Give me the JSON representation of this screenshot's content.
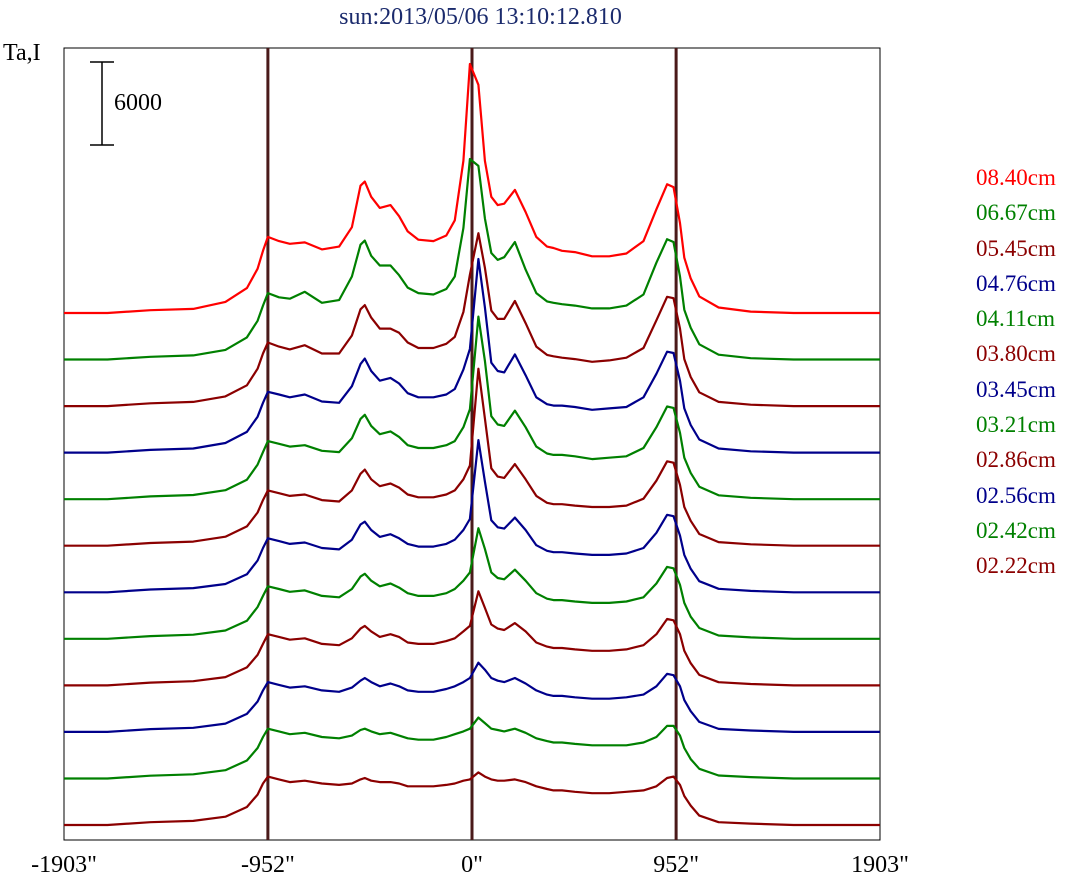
{
  "chart_data": {
    "type": "line",
    "title": "sun:2013/05/06 13:10:12.810",
    "ylabel": "Ta,I",
    "scale_bar_label": "6000",
    "scale_bar_value": 6000,
    "xlim": [
      -1903,
      1903
    ],
    "x_ticks": [
      "-1903\"",
      "-952\"",
      "0\"",
      "952\"",
      "1903\""
    ],
    "reference_lines_x": [
      -952,
      0,
      952
    ],
    "x": [
      -1903,
      -1700,
      -1500,
      -1300,
      -1150,
      -1050,
      -1000,
      -975,
      -952,
      -900,
      -850,
      -780,
      -700,
      -620,
      -560,
      -520,
      -500,
      -470,
      -430,
      -380,
      -340,
      -300,
      -250,
      -180,
      -120,
      -80,
      -40,
      -10,
      30,
      60,
      90,
      120,
      150,
      200,
      250,
      300,
      350,
      380,
      420,
      480,
      560,
      640,
      720,
      800,
      860,
      910,
      940,
      970,
      990,
      1020,
      1060,
      1150,
      1300,
      1500,
      1700,
      1903
    ],
    "series": [
      {
        "name": "08.40cm",
        "color": "#ff0000",
        "values": [
          0,
          0,
          200,
          300,
          800,
          1800,
          3200,
          4500,
          5500,
          5200,
          5000,
          5100,
          4600,
          4800,
          6200,
          9200,
          9500,
          8400,
          7600,
          7800,
          7000,
          5900,
          5300,
          5200,
          5600,
          6700,
          11000,
          18000,
          16500,
          11000,
          8400,
          7800,
          7900,
          8900,
          7300,
          5500,
          4800,
          4700,
          4500,
          4400,
          4100,
          4100,
          4300,
          5200,
          7500,
          9300,
          9100,
          6500,
          4000,
          2500,
          1200,
          400,
          100,
          0,
          0,
          0
        ]
      },
      {
        "name": "06.67cm",
        "color": "#008000",
        "values": [
          0,
          0,
          200,
          300,
          700,
          1600,
          2800,
          3900,
          4800,
          4500,
          4400,
          4900,
          4100,
          4300,
          6000,
          8300,
          8600,
          7500,
          6800,
          6800,
          6100,
          5200,
          4800,
          4700,
          5100,
          6000,
          9500,
          14500,
          14000,
          10200,
          7700,
          7200,
          7400,
          8500,
          6500,
          4800,
          4200,
          4100,
          4000,
          3900,
          3700,
          3700,
          3900,
          4700,
          7000,
          8700,
          8500,
          6000,
          3600,
          2300,
          1100,
          350,
          100,
          0,
          0,
          0
        ]
      },
      {
        "name": "05.45cm",
        "color": "#8b0000",
        "values": [
          0,
          0,
          200,
          300,
          700,
          1500,
          2700,
          3800,
          4600,
          4300,
          4100,
          4400,
          3800,
          3800,
          5100,
          7000,
          7300,
          6400,
          5600,
          5600,
          5300,
          4600,
          4200,
          4200,
          4500,
          5000,
          6800,
          9500,
          12500,
          10000,
          6900,
          6300,
          6300,
          7600,
          6000,
          4300,
          3700,
          3600,
          3500,
          3400,
          3200,
          3300,
          3500,
          4200,
          6200,
          7900,
          7800,
          5600,
          3400,
          2100,
          1000,
          300,
          100,
          0,
          0,
          0
        ]
      },
      {
        "name": "04.76cm",
        "color": "#00008b",
        "values": [
          0,
          0,
          200,
          300,
          700,
          1500,
          2600,
          3600,
          4400,
          4200,
          4000,
          4200,
          3700,
          3600,
          4800,
          6400,
          6800,
          5900,
          5200,
          5400,
          5000,
          4300,
          4000,
          4000,
          4200,
          4600,
          6000,
          7500,
          14000,
          10500,
          6500,
          5900,
          5800,
          7100,
          5600,
          4000,
          3500,
          3400,
          3400,
          3300,
          3100,
          3200,
          3300,
          4000,
          5700,
          7300,
          7200,
          5200,
          3200,
          2000,
          950,
          300,
          100,
          0,
          0,
          0
        ]
      },
      {
        "name": "04.11cm",
        "color": "#008000",
        "values": [
          0,
          0,
          200,
          300,
          650,
          1400,
          2500,
          3400,
          4200,
          4000,
          3800,
          3900,
          3500,
          3400,
          4400,
          5800,
          6100,
          5300,
          4700,
          4900,
          4500,
          3900,
          3700,
          3700,
          3900,
          4200,
          5200,
          6500,
          13200,
          10000,
          6000,
          5400,
          5300,
          6400,
          5200,
          3800,
          3300,
          3200,
          3200,
          3100,
          2900,
          3000,
          3100,
          3700,
          5200,
          6700,
          6600,
          4800,
          3000,
          1900,
          900,
          280,
          100,
          0,
          0,
          0
        ]
      },
      {
        "name": "03.80cm",
        "color": "#8b0000",
        "values": [
          0,
          0,
          200,
          300,
          650,
          1400,
          2400,
          3300,
          4000,
          3800,
          3600,
          3700,
          3300,
          3200,
          4000,
          5200,
          5500,
          4800,
          4300,
          4500,
          4200,
          3700,
          3500,
          3500,
          3700,
          4000,
          4800,
          5800,
          12800,
          9200,
          5600,
          5000,
          4900,
          5900,
          4800,
          3600,
          3100,
          3000,
          3000,
          2900,
          2800,
          2800,
          2900,
          3400,
          4700,
          6100,
          6000,
          4400,
          2800,
          1800,
          850,
          260,
          100,
          0,
          0,
          0
        ]
      },
      {
        "name": "03.45cm",
        "color": "#00008b",
        "values": [
          0,
          0,
          200,
          300,
          600,
          1300,
          2300,
          3200,
          3900,
          3700,
          3500,
          3600,
          3200,
          3100,
          3800,
          4900,
          5100,
          4500,
          4000,
          4200,
          3900,
          3500,
          3300,
          3300,
          3500,
          3800,
          4500,
          5300,
          11000,
          8000,
          5200,
          4700,
          4600,
          5400,
          4500,
          3400,
          3000,
          2900,
          2900,
          2800,
          2700,
          2700,
          2800,
          3200,
          4300,
          5600,
          5500,
          4100,
          2700,
          1700,
          800,
          250,
          100,
          0,
          0,
          0
        ]
      },
      {
        "name": "03.21cm",
        "color": "#008000",
        "values": [
          0,
          0,
          200,
          300,
          600,
          1300,
          2300,
          3100,
          3800,
          3600,
          3400,
          3500,
          3100,
          3000,
          3600,
          4500,
          4700,
          4200,
          3800,
          4000,
          3700,
          3300,
          3100,
          3100,
          3300,
          3600,
          4200,
          4800,
          8000,
          6500,
          4800,
          4400,
          4300,
          5000,
          4200,
          3300,
          2900,
          2800,
          2800,
          2700,
          2600,
          2600,
          2700,
          3000,
          4000,
          5200,
          5100,
          3900,
          2600,
          1600,
          780,
          240,
          100,
          0,
          0,
          0
        ]
      },
      {
        "name": "02.86cm",
        "color": "#8b0000",
        "values": [
          0,
          0,
          200,
          300,
          600,
          1300,
          2200,
          3000,
          3700,
          3500,
          3300,
          3400,
          3000,
          2900,
          3400,
          4100,
          4300,
          3900,
          3500,
          3700,
          3500,
          3100,
          3000,
          3000,
          3200,
          3400,
          3900,
          4300,
          6800,
          5600,
          4400,
          4100,
          4000,
          4500,
          3900,
          3100,
          2800,
          2700,
          2700,
          2600,
          2500,
          2500,
          2600,
          2900,
          3700,
          4800,
          4700,
          3700,
          2500,
          1600,
          760,
          230,
          100,
          0,
          0,
          0
        ]
      },
      {
        "name": "02.56cm",
        "color": "#00008b",
        "values": [
          0,
          0,
          200,
          300,
          600,
          1300,
          2200,
          3000,
          3600,
          3400,
          3200,
          3300,
          3000,
          2900,
          3200,
          3700,
          3900,
          3600,
          3300,
          3500,
          3300,
          3000,
          2900,
          2900,
          3100,
          3300,
          3600,
          3900,
          5000,
          4500,
          3900,
          3700,
          3600,
          3900,
          3500,
          3000,
          2700,
          2600,
          2600,
          2500,
          2400,
          2400,
          2500,
          2700,
          3300,
          4200,
          4100,
          3300,
          2300,
          1500,
          720,
          220,
          100,
          0,
          0,
          0
        ]
      },
      {
        "name": "02.42cm",
        "color": "#008000",
        "values": [
          0,
          0,
          200,
          300,
          600,
          1300,
          2200,
          3000,
          3600,
          3400,
          3200,
          3300,
          3000,
          2900,
          3100,
          3500,
          3600,
          3400,
          3200,
          3300,
          3100,
          2900,
          2800,
          2800,
          3000,
          3200,
          3400,
          3600,
          4400,
          4000,
          3600,
          3500,
          3400,
          3600,
          3300,
          2900,
          2700,
          2600,
          2600,
          2500,
          2400,
          2400,
          2400,
          2600,
          3000,
          3800,
          3800,
          3100,
          2200,
          1400,
          700,
          210,
          100,
          0,
          0,
          0
        ]
      },
      {
        "name": "02.22cm",
        "color": "#8b0000",
        "values": [
          0,
          0,
          200,
          300,
          600,
          1300,
          2200,
          3000,
          3500,
          3300,
          3100,
          3200,
          3000,
          2900,
          3000,
          3300,
          3400,
          3200,
          3100,
          3100,
          3000,
          2800,
          2800,
          2800,
          2900,
          3000,
          3200,
          3300,
          3800,
          3500,
          3300,
          3200,
          3200,
          3300,
          3100,
          2800,
          2600,
          2500,
          2500,
          2400,
          2300,
          2300,
          2400,
          2500,
          2800,
          3400,
          3500,
          2900,
          2100,
          1400,
          680,
          200,
          100,
          0,
          0,
          0
        ]
      }
    ]
  }
}
